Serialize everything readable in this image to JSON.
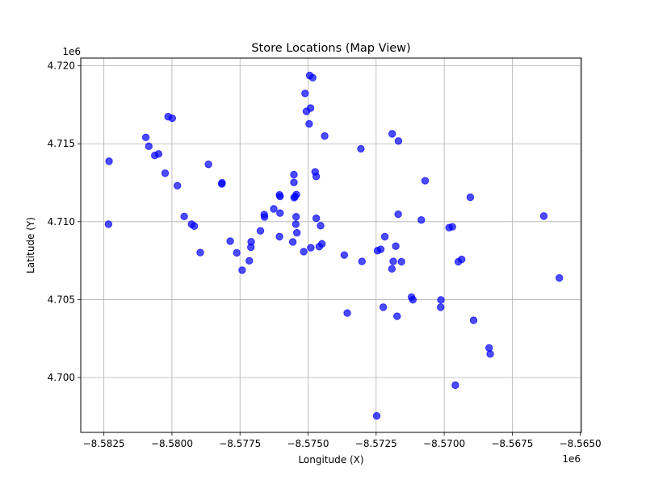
{
  "chart_data": {
    "type": "scatter",
    "title": "Store Locations (Map View)",
    "xlabel": "Longitude (X)",
    "ylabel": "Latitude (Y)",
    "x_offset_label": "1e6",
    "y_offset_label": "1e6",
    "xlim": [
      -8.58335,
      -8.56496
    ],
    "ylim": [
      4.69648,
      4.7205
    ],
    "xticks": [
      -8.5825,
      -8.58,
      -8.5775,
      -8.575,
      -8.5725,
      -8.57,
      -8.5675,
      -8.565
    ],
    "xtick_labels": [
      "−8.5825",
      "−8.5800",
      "−8.5775",
      "−8.5750",
      "−8.5725",
      "−8.5700",
      "−8.5675",
      "−8.5650"
    ],
    "yticks": [
      4.7,
      4.705,
      4.71,
      4.715,
      4.72
    ],
    "ytick_labels": [
      "4.700",
      "4.705",
      "4.710",
      "4.715",
      "4.720"
    ],
    "grid": true,
    "marker_color": "#0000ff",
    "marker_alpha": 0.7,
    "points": [
      [
        -8.58231,
        4.71388
      ],
      [
        -8.58233,
        4.70984
      ],
      [
        -8.58096,
        4.71541
      ],
      [
        -8.58085,
        4.71484
      ],
      [
        -8.58063,
        4.71425
      ],
      [
        -8.58049,
        4.71435
      ],
      [
        -8.58014,
        4.71674
      ],
      [
        -8.57999,
        4.71664
      ],
      [
        -8.58025,
        4.71311
      ],
      [
        -8.5798,
        4.71231
      ],
      [
        -8.57955,
        4.71034
      ],
      [
        -8.57928,
        4.70984
      ],
      [
        -8.57918,
        4.70972
      ],
      [
        -8.57896,
        4.70802
      ],
      [
        -8.57866,
        4.71368
      ],
      [
        -8.57817,
        4.71242
      ],
      [
        -8.57816,
        4.7125
      ],
      [
        -8.57786,
        4.70875
      ],
      [
        -8.57762,
        4.708
      ],
      [
        -8.57742,
        4.70689
      ],
      [
        -8.57716,
        4.70749
      ],
      [
        -8.5771,
        4.70836
      ],
      [
        -8.57709,
        4.70871
      ],
      [
        -8.57675,
        4.70941
      ],
      [
        -8.57661,
        4.71046
      ],
      [
        -8.5766,
        4.7103
      ],
      [
        -8.57626,
        4.71082
      ],
      [
        -8.57605,
        4.71172
      ],
      [
        -8.57603,
        4.71162
      ],
      [
        -8.57603,
        4.71055
      ],
      [
        -8.57605,
        4.70904
      ],
      [
        -8.57552,
        4.71302
      ],
      [
        -8.57552,
        4.71252
      ],
      [
        -8.57551,
        4.71154
      ],
      [
        -8.57548,
        4.71161
      ],
      [
        -8.57543,
        4.71174
      ],
      [
        -8.57544,
        4.71032
      ],
      [
        -8.57545,
        4.70984
      ],
      [
        -8.57541,
        4.70929
      ],
      [
        -8.57556,
        4.7087
      ],
      [
        -8.57516,
        4.70808
      ],
      [
        -8.57511,
        4.71823
      ],
      [
        -8.57506,
        4.71708
      ],
      [
        -8.57496,
        4.71628
      ],
      [
        -8.57494,
        4.71938
      ],
      [
        -8.57483,
        4.71924
      ],
      [
        -8.57491,
        4.71729
      ],
      [
        -8.5749,
        4.70833
      ],
      [
        -8.57474,
        4.7132
      ],
      [
        -8.5747,
        4.7129
      ],
      [
        -8.5747,
        4.71022
      ],
      [
        -8.57459,
        4.7084
      ],
      [
        -8.57454,
        4.70974
      ],
      [
        -8.57449,
        4.70858
      ],
      [
        -8.57439,
        4.7155
      ],
      [
        -8.57367,
        4.70786
      ],
      [
        -8.57356,
        4.70414
      ],
      [
        -8.57306,
        4.71468
      ],
      [
        -8.57302,
        4.70745
      ],
      [
        -8.57248,
        4.69754
      ],
      [
        -8.57245,
        4.70814
      ],
      [
        -8.57233,
        4.70823
      ],
      [
        -8.57224,
        4.70451
      ],
      [
        -8.57218,
        4.70904
      ],
      [
        -8.57191,
        4.71564
      ],
      [
        -8.57192,
        4.70697
      ],
      [
        -8.57187,
        4.70745
      ],
      [
        -8.57178,
        4.70843
      ],
      [
        -8.57173,
        4.70393
      ],
      [
        -8.57168,
        4.71518
      ],
      [
        -8.57169,
        4.71048
      ],
      [
        -8.57157,
        4.70743
      ],
      [
        -8.5712,
        4.70516
      ],
      [
        -8.57115,
        4.70499
      ],
      [
        -8.57084,
        4.71011
      ],
      [
        -8.5707,
        4.71263
      ],
      [
        -8.57013,
        4.70451
      ],
      [
        -8.57012,
        4.70498
      ],
      [
        -8.56982,
        4.70962
      ],
      [
        -8.5697,
        4.70967
      ],
      [
        -8.56959,
        4.69951
      ],
      [
        -8.56948,
        4.70743
      ],
      [
        -8.56936,
        4.70758
      ],
      [
        -8.56904,
        4.71157
      ],
      [
        -8.56892,
        4.70367
      ],
      [
        -8.56835,
        4.7019
      ],
      [
        -8.56831,
        4.70151
      ],
      [
        -8.56634,
        4.71036
      ],
      [
        -8.56577,
        4.70639
      ]
    ]
  }
}
